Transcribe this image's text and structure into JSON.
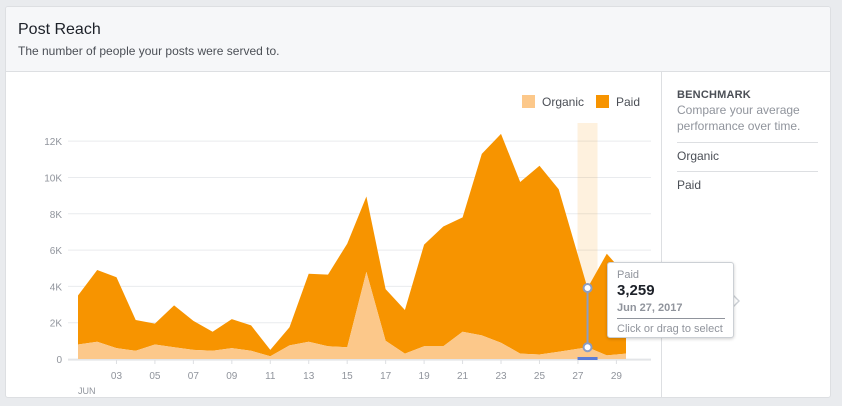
{
  "card": {
    "title": "Post Reach",
    "subtitle": "The number of people your posts were served to."
  },
  "benchmark": {
    "title": "BENCHMARK",
    "description": "Compare your average performance over time.",
    "items": [
      "Organic",
      "Paid"
    ]
  },
  "tooltip": {
    "series": "Paid",
    "value": "3,259",
    "date": "Jun 27, 2017",
    "hint": "Click or drag to select"
  },
  "chart_data": {
    "type": "area",
    "stacked": true,
    "x_tick_labels": [
      "03",
      "05",
      "07",
      "09",
      "11",
      "13",
      "15",
      "17",
      "19",
      "21",
      "23",
      "25",
      "27",
      "29"
    ],
    "x_tick_days": [
      3,
      5,
      7,
      9,
      11,
      13,
      15,
      17,
      19,
      21,
      23,
      25,
      27,
      29
    ],
    "x_sublabel": "JUN",
    "x_range": [
      1,
      29.5
    ],
    "y_tick_labels": [
      "0",
      "2K",
      "4K",
      "6K",
      "8K",
      "10K",
      "12K"
    ],
    "y_ticks": [
      0,
      2000,
      4000,
      6000,
      8000,
      10000,
      12000
    ],
    "ylim": [
      0,
      13000
    ],
    "grid": true,
    "legend_position": "top-right",
    "highlight_day": 27.5,
    "selected_index": 26,
    "days": [
      1,
      2,
      3,
      4,
      5,
      6,
      7,
      8,
      9,
      10,
      11,
      12,
      13,
      14,
      15,
      16,
      17,
      18,
      19,
      20,
      21,
      22,
      23,
      24,
      25,
      26,
      27.5,
      28.5,
      29.5
    ],
    "series": [
      {
        "name": "Organic",
        "color": "#fcc88a",
        "values": [
          800,
          950,
          600,
          450,
          800,
          650,
          500,
          450,
          600,
          450,
          150,
          750,
          950,
          700,
          650,
          4800,
          1000,
          300,
          700,
          700,
          1500,
          1300,
          900,
          300,
          250,
          400,
          650,
          200,
          300
        ]
      },
      {
        "name": "Paid",
        "color": "#f79400",
        "values": [
          2700,
          3950,
          3900,
          1700,
          1150,
          2300,
          1600,
          1050,
          1600,
          1400,
          350,
          1000,
          3750,
          3950,
          5700,
          4150,
          2850,
          2400,
          5600,
          6600,
          6300,
          10000,
          11500,
          9450,
          10400,
          8950,
          3259,
          5600,
          4300
        ]
      }
    ]
  }
}
